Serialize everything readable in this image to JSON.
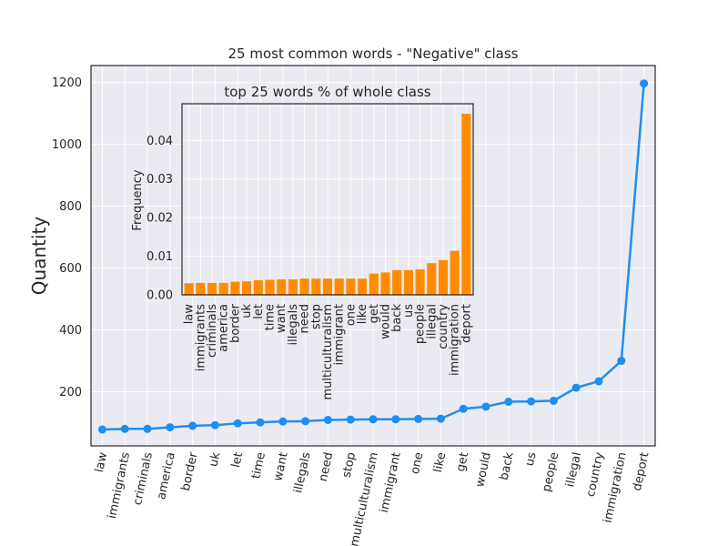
{
  "chart_data": [
    {
      "type": "line",
      "title": "25 most common words - \"Negative\" class",
      "xlabel": "",
      "ylabel": "Quantity",
      "ylim": [
        25,
        1255
      ],
      "yticks": [
        200,
        400,
        600,
        800,
        1000,
        1200
      ],
      "grid": true,
      "categories": [
        "law",
        "immigrants",
        "criminals",
        "america",
        "border",
        "uk",
        "let",
        "time",
        "want",
        "illegals",
        "need",
        "stop",
        "multiculturalism",
        "immigrant",
        "one",
        "like",
        "get",
        "would",
        "back",
        "us",
        "people",
        "illegal",
        "country",
        "immigration",
        "deport"
      ],
      "series": [
        {
          "values": [
            78,
            80,
            80,
            85,
            90,
            92,
            98,
            101,
            104,
            105,
            109,
            110,
            111,
            111,
            112,
            113,
            145,
            152,
            168,
            169,
            171,
            213,
            234,
            300,
            1197
          ],
          "color": "#1f8ef1"
        }
      ]
    },
    {
      "type": "bar",
      "title": "top 25 words % of whole class",
      "xlabel": "",
      "ylabel": "Frequency",
      "ylim": [
        0,
        0.0495
      ],
      "yticks": [
        0.0,
        0.01,
        0.02,
        0.03,
        0.04
      ],
      "ytick_labels": [
        "0.00",
        "0.01",
        "0.02",
        "0.03",
        "0.04"
      ],
      "grid": true,
      "categories": [
        "law",
        "immigrants",
        "criminals",
        "america",
        "border",
        "uk",
        "let",
        "time",
        "want",
        "illegals",
        "need",
        "stop",
        "multiculturalism",
        "immigrant",
        "one",
        "like",
        "get",
        "would",
        "back",
        "us",
        "people",
        "illegal",
        "country",
        "immigration",
        "deport"
      ],
      "series": [
        {
          "values": [
            0.003,
            0.0031,
            0.0031,
            0.0031,
            0.0034,
            0.0035,
            0.0038,
            0.0039,
            0.004,
            0.004,
            0.0042,
            0.0042,
            0.0042,
            0.0042,
            0.0042,
            0.0042,
            0.0055,
            0.0058,
            0.0064,
            0.0064,
            0.0066,
            0.0082,
            0.009,
            0.0114,
            0.0469
          ],
          "color": "#ff8c00"
        }
      ]
    }
  ]
}
